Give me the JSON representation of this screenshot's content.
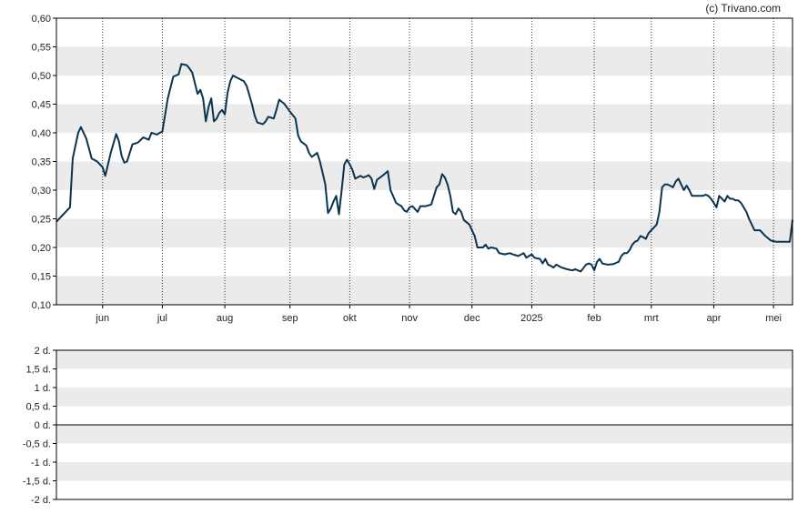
{
  "copyright": "(c) Trivano.com",
  "colors": {
    "price_line": "#0b3450",
    "band_shade": "#ebebeb",
    "grid": "#333333",
    "frame": "#000000",
    "background": "#ffffff"
  },
  "chart_data": [
    {
      "type": "line",
      "grid": true,
      "ylim": [
        0.1,
        0.6
      ],
      "y_ticks": [
        0.1,
        0.15,
        0.2,
        0.25,
        0.3,
        0.35,
        0.4,
        0.45,
        0.5,
        0.55,
        0.6
      ],
      "y_tick_labels": [
        "0,10",
        "0,15",
        "0,20",
        "0,25",
        "0,30",
        "0,35",
        "0,40",
        "0,45",
        "0,50",
        "0,55",
        "0,60"
      ],
      "x_tick_labels": [
        "jun",
        "jul",
        "aug",
        "sep",
        "okt",
        "nov",
        "dec",
        "2025",
        "feb",
        "mrt",
        "apr",
        "mei"
      ],
      "x_tick_index": [
        17,
        39,
        62,
        86,
        108,
        130,
        153,
        175,
        198,
        219,
        242,
        264
      ],
      "x_count": 272,
      "keypoints": [
        [
          0,
          0.245
        ],
        [
          3,
          0.26
        ],
        [
          5,
          0.27
        ],
        [
          6,
          0.355
        ],
        [
          8,
          0.4
        ],
        [
          9,
          0.41
        ],
        [
          11,
          0.39
        ],
        [
          13,
          0.355
        ],
        [
          15,
          0.35
        ],
        [
          17,
          0.34
        ],
        [
          18,
          0.325
        ],
        [
          20,
          0.365
        ],
        [
          22,
          0.398
        ],
        [
          23,
          0.385
        ],
        [
          24,
          0.36
        ],
        [
          25,
          0.348
        ],
        [
          26,
          0.35
        ],
        [
          28,
          0.38
        ],
        [
          30,
          0.383
        ],
        [
          32,
          0.392
        ],
        [
          34,
          0.388
        ],
        [
          35,
          0.4
        ],
        [
          37,
          0.397
        ],
        [
          38,
          0.4
        ],
        [
          39,
          0.402
        ],
        [
          41,
          0.46
        ],
        [
          43,
          0.498
        ],
        [
          45,
          0.502
        ],
        [
          46,
          0.52
        ],
        [
          48,
          0.518
        ],
        [
          49,
          0.512
        ],
        [
          50,
          0.505
        ],
        [
          52,
          0.468
        ],
        [
          53,
          0.475
        ],
        [
          54,
          0.46
        ],
        [
          55,
          0.42
        ],
        [
          56,
          0.445
        ],
        [
          57,
          0.46
        ],
        [
          58,
          0.42
        ],
        [
          59,
          0.425
        ],
        [
          60,
          0.435
        ],
        [
          61,
          0.44
        ],
        [
          62,
          0.432
        ],
        [
          63,
          0.47
        ],
        [
          64,
          0.49
        ],
        [
          65,
          0.5
        ],
        [
          67,
          0.495
        ],
        [
          69,
          0.49
        ],
        [
          70,
          0.482
        ],
        [
          72,
          0.45
        ],
        [
          73,
          0.43
        ],
        [
          74,
          0.418
        ],
        [
          76,
          0.415
        ],
        [
          77,
          0.42
        ],
        [
          78,
          0.428
        ],
        [
          80,
          0.425
        ],
        [
          81,
          0.44
        ],
        [
          82,
          0.458
        ],
        [
          84,
          0.45
        ],
        [
          86,
          0.437
        ],
        [
          88,
          0.425
        ],
        [
          89,
          0.395
        ],
        [
          90,
          0.385
        ],
        [
          92,
          0.378
        ],
        [
          93,
          0.365
        ],
        [
          94,
          0.358
        ],
        [
          96,
          0.365
        ],
        [
          97,
          0.35
        ],
        [
          98,
          0.33
        ],
        [
          99,
          0.31
        ],
        [
          100,
          0.26
        ],
        [
          101,
          0.268
        ],
        [
          102,
          0.28
        ],
        [
          103,
          0.29
        ],
        [
          104,
          0.258
        ],
        [
          105,
          0.3
        ],
        [
          106,
          0.345
        ],
        [
          107,
          0.353
        ],
        [
          108,
          0.345
        ],
        [
          109,
          0.335
        ],
        [
          110,
          0.32
        ],
        [
          112,
          0.325
        ],
        [
          113,
          0.322
        ],
        [
          115,
          0.326
        ],
        [
          116,
          0.32
        ],
        [
          117,
          0.302
        ],
        [
          118,
          0.318
        ],
        [
          120,
          0.325
        ],
        [
          122,
          0.333
        ],
        [
          123,
          0.3
        ],
        [
          125,
          0.278
        ],
        [
          127,
          0.272
        ],
        [
          128,
          0.265
        ],
        [
          129,
          0.262
        ],
        [
          130,
          0.27
        ],
        [
          131,
          0.272
        ],
        [
          133,
          0.262
        ],
        [
          134,
          0.272
        ],
        [
          136,
          0.272
        ],
        [
          138,
          0.275
        ],
        [
          139,
          0.29
        ],
        [
          140,
          0.305
        ],
        [
          141,
          0.31
        ],
        [
          142,
          0.328
        ],
        [
          143,
          0.322
        ],
        [
          144,
          0.31
        ],
        [
          145,
          0.29
        ],
        [
          146,
          0.262
        ],
        [
          147,
          0.258
        ],
        [
          148,
          0.268
        ],
        [
          149,
          0.262
        ],
        [
          150,
          0.248
        ],
        [
          152,
          0.24
        ],
        [
          153,
          0.23
        ],
        [
          154,
          0.22
        ],
        [
          155,
          0.2
        ],
        [
          157,
          0.2
        ],
        [
          158,
          0.205
        ],
        [
          159,
          0.198
        ],
        [
          160,
          0.2
        ],
        [
          162,
          0.198
        ],
        [
          163,
          0.19
        ],
        [
          165,
          0.188
        ],
        [
          167,
          0.19
        ],
        [
          168,
          0.188
        ],
        [
          170,
          0.185
        ],
        [
          172,
          0.19
        ],
        [
          173,
          0.182
        ],
        [
          175,
          0.188
        ],
        [
          176,
          0.182
        ],
        [
          178,
          0.18
        ],
        [
          179,
          0.172
        ],
        [
          180,
          0.18
        ],
        [
          181,
          0.17
        ],
        [
          182,
          0.168
        ],
        [
          183,
          0.165
        ],
        [
          184,
          0.17
        ],
        [
          186,
          0.165
        ],
        [
          188,
          0.162
        ],
        [
          190,
          0.16
        ],
        [
          191,
          0.162
        ],
        [
          193,
          0.158
        ],
        [
          195,
          0.17
        ],
        [
          196,
          0.172
        ],
        [
          197,
          0.17
        ],
        [
          198,
          0.16
        ],
        [
          199,
          0.175
        ],
        [
          200,
          0.18
        ],
        [
          201,
          0.172
        ],
        [
          203,
          0.17
        ],
        [
          205,
          0.171
        ],
        [
          207,
          0.175
        ],
        [
          208,
          0.185
        ],
        [
          209,
          0.19
        ],
        [
          210,
          0.19
        ],
        [
          211,
          0.195
        ],
        [
          212,
          0.205
        ],
        [
          213,
          0.21
        ],
        [
          214,
          0.212
        ],
        [
          215,
          0.22
        ],
        [
          216,
          0.218
        ],
        [
          217,
          0.215
        ],
        [
          218,
          0.225
        ],
        [
          220,
          0.235
        ],
        [
          221,
          0.24
        ],
        [
          222,
          0.262
        ],
        [
          223,
          0.305
        ],
        [
          224,
          0.31
        ],
        [
          225,
          0.31
        ],
        [
          227,
          0.305
        ],
        [
          228,
          0.315
        ],
        [
          229,
          0.32
        ],
        [
          230,
          0.31
        ],
        [
          231,
          0.3
        ],
        [
          232,
          0.308
        ],
        [
          233,
          0.3
        ],
        [
          234,
          0.29
        ],
        [
          236,
          0.29
        ],
        [
          238,
          0.29
        ],
        [
          239,
          0.292
        ],
        [
          240,
          0.29
        ],
        [
          241,
          0.285
        ],
        [
          242,
          0.278
        ],
        [
          243,
          0.27
        ],
        [
          244,
          0.29
        ],
        [
          246,
          0.28
        ],
        [
          247,
          0.29
        ],
        [
          248,
          0.285
        ],
        [
          249,
          0.285
        ],
        [
          250,
          0.282
        ],
        [
          251,
          0.282
        ],
        [
          252,
          0.278
        ],
        [
          253,
          0.27
        ],
        [
          254,
          0.262
        ],
        [
          255,
          0.25
        ],
        [
          256,
          0.24
        ],
        [
          257,
          0.23
        ],
        [
          259,
          0.23
        ],
        [
          261,
          0.22
        ],
        [
          263,
          0.212
        ],
        [
          265,
          0.21
        ],
        [
          267,
          0.21
        ],
        [
          269,
          0.21
        ],
        [
          270,
          0.21
        ],
        [
          271,
          0.248
        ]
      ]
    },
    {
      "type": "line",
      "grid": true,
      "ylim": [
        -2,
        2
      ],
      "y_ticks": [
        2,
        1.5,
        1,
        0.5,
        0,
        -0.5,
        -1,
        -1.5,
        -2
      ],
      "y_tick_labels": [
        "2 d.",
        "1,5 d.",
        "1 d.",
        "0,5 d.",
        "0 d.",
        "-0,5 d.",
        "-1 d.",
        "-1,5 d.",
        "-2 d."
      ],
      "series": [
        {
          "values": []
        }
      ]
    }
  ]
}
